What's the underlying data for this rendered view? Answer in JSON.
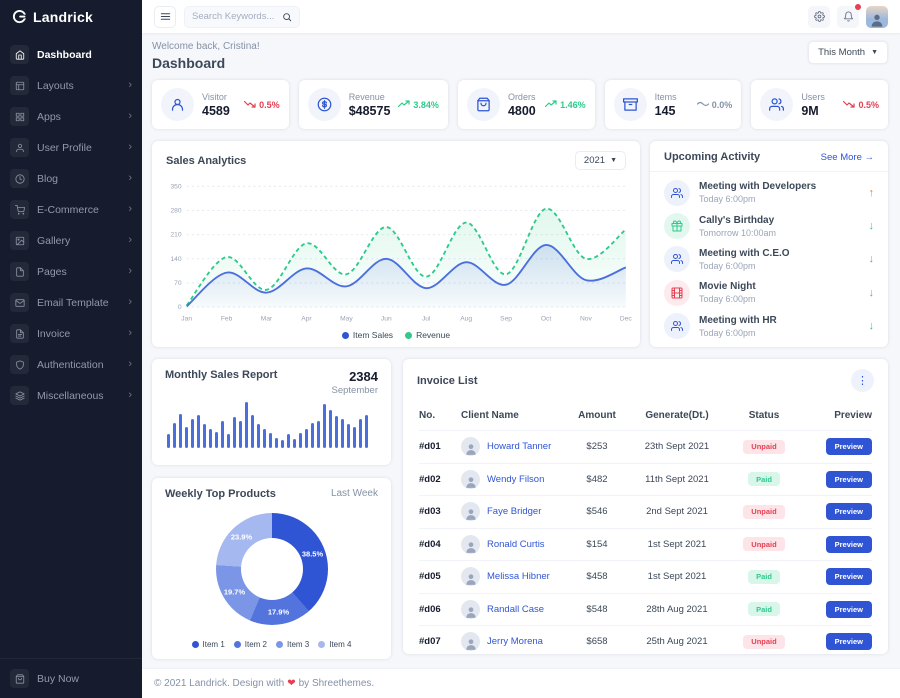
{
  "brand": {
    "name": "Landrick"
  },
  "sidebar": {
    "items": [
      {
        "label": "Dashboard",
        "icon": "home",
        "active": true,
        "has_children": false
      },
      {
        "label": "Layouts",
        "icon": "layout",
        "active": false,
        "has_children": true
      },
      {
        "label": "Apps",
        "icon": "grid",
        "active": false,
        "has_children": true
      },
      {
        "label": "User Profile",
        "icon": "user",
        "active": false,
        "has_children": true
      },
      {
        "label": "Blog",
        "icon": "clock",
        "active": false,
        "has_children": true
      },
      {
        "label": "E-Commerce",
        "icon": "cart",
        "active": false,
        "has_children": true
      },
      {
        "label": "Gallery",
        "icon": "image",
        "active": false,
        "has_children": true
      },
      {
        "label": "Pages",
        "icon": "file",
        "active": false,
        "has_children": true
      },
      {
        "label": "Email Template",
        "icon": "mail",
        "active": false,
        "has_children": true
      },
      {
        "label": "Invoice",
        "icon": "file-text",
        "active": false,
        "has_children": true
      },
      {
        "label": "Authentication",
        "icon": "shield",
        "active": false,
        "has_children": true
      },
      {
        "label": "Miscellaneous",
        "icon": "layers",
        "active": false,
        "has_children": true
      }
    ],
    "buy_now_label": "Buy Now"
  },
  "topbar": {
    "search_placeholder": "Search Keywords..."
  },
  "header": {
    "welcome": "Welcome back, Cristina!",
    "title": "Dashboard",
    "period": "This Month"
  },
  "stats": [
    {
      "icon": "user-check",
      "label": "Visitor",
      "value": "4589",
      "trend": "0.5%",
      "dir": "down"
    },
    {
      "icon": "dollar",
      "label": "Revenue",
      "value": "$48575",
      "trend": "3.84%",
      "dir": "up"
    },
    {
      "icon": "shopping-bag",
      "label": "Orders",
      "value": "4800",
      "trend": "1.46%",
      "dir": "up"
    },
    {
      "icon": "archive",
      "label": "Items",
      "value": "145",
      "trend": "0.0%",
      "dir": "flat"
    },
    {
      "icon": "users",
      "label": "Users",
      "value": "9M",
      "trend": "0.5%",
      "dir": "down"
    }
  ],
  "upcoming_activity": {
    "title": "Upcoming Activity",
    "see_more": "See More →",
    "items": [
      {
        "icon": "users",
        "color": "blue",
        "title": "Meeting with Developers",
        "time": "Today 6:00pm",
        "arrow": "up"
      },
      {
        "icon": "gift",
        "color": "green",
        "title": "Cally's Birthday",
        "time": "Tomorrow 10:00am",
        "arrow": "down"
      },
      {
        "icon": "users",
        "color": "blue",
        "title": "Meeting with C.E.O",
        "time": "Today 6:00pm",
        "arrow": "down"
      },
      {
        "icon": "film",
        "color": "red",
        "title": "Movie Night",
        "time": "Today 6:00pm",
        "arrow": "down"
      },
      {
        "icon": "users",
        "color": "blue",
        "title": "Meeting with HR",
        "time": "Today 6:00pm",
        "arrow": "down"
      }
    ]
  },
  "chart_data": [
    {
      "id": "sales_analytics",
      "type": "area",
      "title": "Sales Analytics",
      "year_selector": "2021",
      "x": [
        "Jan",
        "Feb",
        "Mar",
        "Apr",
        "May",
        "Jun",
        "Jul",
        "Aug",
        "Sep",
        "Oct",
        "Nov",
        "Dec"
      ],
      "ylim": [
        0,
        350
      ],
      "yticks": [
        0,
        70,
        140,
        210,
        280,
        350
      ],
      "grid": true,
      "legend_position": "bottom",
      "series": [
        {
          "name": "Item Sales",
          "color": "#2f55d4",
          "style": "solid",
          "values": [
            2,
            100,
            42,
            112,
            60,
            140,
            55,
            130,
            65,
            180,
            78,
            115
          ]
        },
        {
          "name": "Revenue",
          "color": "#2eca8b",
          "style": "dashed",
          "values": [
            5,
            145,
            50,
            185,
            95,
            232,
            88,
            245,
            95,
            285,
            140,
            225
          ]
        }
      ]
    },
    {
      "id": "monthly_sales_report",
      "type": "bar",
      "title": "Monthly Sales Report",
      "total": "2384",
      "month": "September",
      "color": "#4a6fdd",
      "values": [
        30,
        55,
        75,
        45,
        62,
        72,
        52,
        42,
        35,
        58,
        30,
        68,
        58,
        100,
        72,
        52,
        42,
        32,
        22,
        18,
        30,
        20,
        32,
        42,
        55,
        58,
        95,
        82,
        70,
        62,
        52,
        45,
        62,
        72
      ]
    },
    {
      "id": "weekly_top_products",
      "type": "donut",
      "title": "Weekly Top Products",
      "period": "Last Week",
      "labels": [
        "Item 1",
        "Item 2",
        "Item 3",
        "Item 4"
      ],
      "values": [
        38.5,
        17.9,
        19.7,
        23.9
      ],
      "colors": [
        "#2f55d4",
        "#5274dc",
        "#7b96e6",
        "#a5b8ef"
      ],
      "legend_position": "bottom"
    }
  ],
  "invoice_list": {
    "title": "Invoice List",
    "columns": [
      "No.",
      "Client Name",
      "Amount",
      "Generate(Dt.)",
      "Status",
      "Preview"
    ],
    "preview_label": "Preview",
    "rows": [
      {
        "no": "#d01",
        "name": "Howard Tanner",
        "amount": "$253",
        "date": "23th Sept 2021",
        "status": "Unpaid"
      },
      {
        "no": "#d02",
        "name": "Wendy Filson",
        "amount": "$482",
        "date": "11th Sept 2021",
        "status": "Paid"
      },
      {
        "no": "#d03",
        "name": "Faye Bridger",
        "amount": "$546",
        "date": "2nd Sept 2021",
        "status": "Unpaid"
      },
      {
        "no": "#d04",
        "name": "Ronald Curtis",
        "amount": "$154",
        "date": "1st Sept 2021",
        "status": "Unpaid"
      },
      {
        "no": "#d05",
        "name": "Melissa Hibner",
        "amount": "$458",
        "date": "1st Sept 2021",
        "status": "Paid"
      },
      {
        "no": "#d06",
        "name": "Randall Case",
        "amount": "$548",
        "date": "28th Aug 2021",
        "status": "Paid"
      },
      {
        "no": "#d07",
        "name": "Jerry Morena",
        "amount": "$658",
        "date": "25th Aug 2021",
        "status": "Unpaid"
      }
    ]
  },
  "footer": {
    "text_before": "© 2021 Landrick. Design with",
    "heart": "❤",
    "text_after": "by Shreethemes."
  }
}
